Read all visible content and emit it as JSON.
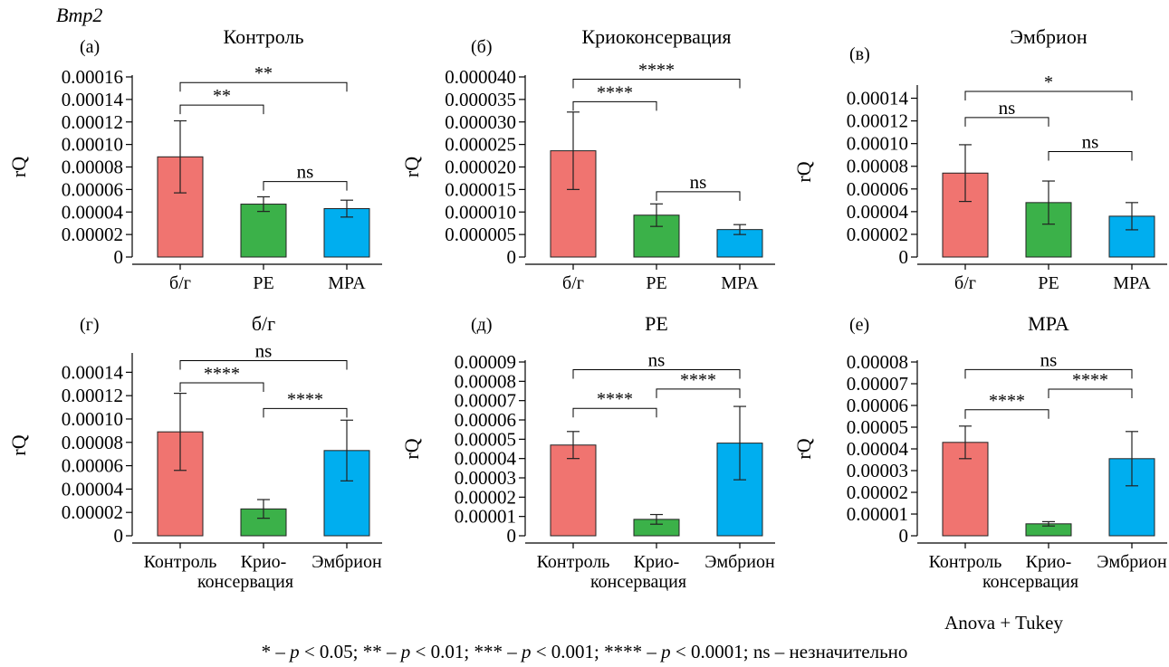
{
  "figure": {
    "gene_label": "Bmp2",
    "method_note": "Anova + Tukey",
    "legend": [
      {
        "sym": "*",
        "p": "0.05"
      },
      {
        "sym": "**",
        "p": "0.01"
      },
      {
        "sym": "***",
        "p": "0.001"
      },
      {
        "sym": "****",
        "p": "0.0001"
      }
    ],
    "legend_ns": "ns – незначительно"
  },
  "colors": {
    "red": "#f07470",
    "green": "#3bb149",
    "blue": "#00aeef"
  },
  "chart_data": [
    {
      "type": "bar",
      "letter": "(а)",
      "title": "Контроль",
      "ylabel": "rQ",
      "categories": [
        "б/г",
        "PE",
        "MPA"
      ],
      "values": [
        8.9e-05,
        4.7e-05,
        4.3e-05
      ],
      "errors": [
        3.2e-05,
        6.5e-06,
        7.5e-06
      ],
      "colors": [
        "red",
        "green",
        "blue"
      ],
      "ylim": [
        0,
        0.00016
      ],
      "yticks": [
        "0",
        "0.00002",
        "0.00004",
        "0.00006",
        "0.00008",
        "0.00010",
        "0.00012",
        "0.00014",
        "0.00016"
      ],
      "tick_step": 2e-05,
      "brackets": [
        {
          "from": 0,
          "to": 1,
          "at": 0.000135,
          "label": "**"
        },
        {
          "from": 0,
          "to": 2,
          "at": 0.000155,
          "label": "**"
        },
        {
          "from": 1,
          "to": 2,
          "at": 6.7e-05,
          "label": "ns"
        }
      ]
    },
    {
      "type": "bar",
      "letter": "(б)",
      "title": "Криоконсервация",
      "ylabel": "rQ",
      "categories": [
        "б/г",
        "PE",
        "MPA"
      ],
      "values": [
        2.36e-05,
        9.3e-06,
        6.1e-06
      ],
      "errors": [
        8.6e-06,
        2.5e-06,
        1.1e-06
      ],
      "colors": [
        "red",
        "green",
        "blue"
      ],
      "ylim": [
        0,
        4e-05
      ],
      "yticks": [
        "0",
        "0.000005",
        "0.000010",
        "0.000015",
        "0.000020",
        "0.000025",
        "0.000030",
        "0.000035",
        "0.000040"
      ],
      "tick_step": 5e-06,
      "brackets": [
        {
          "from": 0,
          "to": 1,
          "at": 3.45e-05,
          "label": "****"
        },
        {
          "from": 0,
          "to": 2,
          "at": 3.95e-05,
          "label": "****"
        },
        {
          "from": 1,
          "to": 2,
          "at": 1.45e-05,
          "label": "ns"
        }
      ]
    },
    {
      "type": "bar",
      "letter": "(в)",
      "title": "Эмбрион",
      "ylabel": "rQ",
      "categories": [
        "б/г",
        "PE",
        "MPA"
      ],
      "values": [
        7.4e-05,
        4.8e-05,
        3.6e-05
      ],
      "errors": [
        2.5e-05,
        1.9e-05,
        1.2e-05
      ],
      "colors": [
        "red",
        "green",
        "blue"
      ],
      "ylim": [
        0,
        0.00015
      ],
      "yticks": [
        "0",
        "0.00002",
        "0.00004",
        "0.00006",
        "0.00008",
        "0.00010",
        "0.00012",
        "0.00014"
      ],
      "tick_step": 2e-05,
      "brackets": [
        {
          "from": 0,
          "to": 1,
          "at": 0.000123,
          "label": "ns"
        },
        {
          "from": 0,
          "to": 2,
          "at": 0.000146,
          "label": "*"
        },
        {
          "from": 1,
          "to": 2,
          "at": 9.3e-05,
          "label": "ns"
        }
      ]
    },
    {
      "type": "bar",
      "letter": "(г)",
      "title": "б/г",
      "ylabel": "rQ",
      "categories": [
        "Контроль",
        "Крио-|консервация",
        "Эмбрион"
      ],
      "values": [
        8.9e-05,
        2.3e-05,
        7.3e-05
      ],
      "errors": [
        3.3e-05,
        8e-06,
        2.6e-05
      ],
      "colors": [
        "red",
        "green",
        "blue"
      ],
      "ylim": [
        0,
        0.000155
      ],
      "yticks": [
        "0",
        "0.00002",
        "0.00004",
        "0.00006",
        "0.00008",
        "0.00010",
        "0.00012",
        "0.00014"
      ],
      "tick_step": 2e-05,
      "brackets": [
        {
          "from": 0,
          "to": 1,
          "at": 0.000131,
          "label": "****"
        },
        {
          "from": 0,
          "to": 2,
          "at": 0.00015,
          "label": "ns"
        },
        {
          "from": 1,
          "to": 2,
          "at": 0.000109,
          "label": "****"
        }
      ]
    },
    {
      "type": "bar",
      "letter": "(д)",
      "title": "PE",
      "ylabel": "rQ",
      "categories": [
        "Контроль",
        "Крио-|консервация",
        "Эмбрион"
      ],
      "values": [
        4.7e-05,
        8.5e-06,
        4.8e-05
      ],
      "errors": [
        7e-06,
        2.5e-06,
        1.9e-05
      ],
      "colors": [
        "red",
        "green",
        "blue"
      ],
      "ylim": [
        0,
        9e-05
      ],
      "yticks": [
        "0",
        "0.00001",
        "0.00002",
        "0.00003",
        "0.00004",
        "0.00005",
        "0.00006",
        "0.00007",
        "0.00008",
        "0.00009"
      ],
      "tick_step": 1e-05,
      "brackets": [
        {
          "from": 0,
          "to": 1,
          "at": 6.6e-05,
          "label": "****"
        },
        {
          "from": 0,
          "to": 2,
          "at": 8.6e-05,
          "label": "ns"
        },
        {
          "from": 1,
          "to": 2,
          "at": 7.6e-05,
          "label": "****"
        }
      ]
    },
    {
      "type": "bar",
      "letter": "(е)",
      "title": "MPA",
      "ylabel": "rQ",
      "categories": [
        "Контроль",
        "Крио-|консервация",
        "Эмбрион"
      ],
      "values": [
        4.3e-05,
        5.5e-06,
        3.55e-05
      ],
      "errors": [
        7.5e-06,
        1e-06,
        1.25e-05
      ],
      "colors": [
        "red",
        "green",
        "blue"
      ],
      "ylim": [
        0,
        8e-05
      ],
      "yticks": [
        "0",
        "0.00001",
        "0.00002",
        "0.00003",
        "0.00004",
        "0.00005",
        "0.00006",
        "0.00007",
        "0.00008"
      ],
      "tick_step": 1e-05,
      "brackets": [
        {
          "from": 0,
          "to": 1,
          "at": 5.8e-05,
          "label": "****"
        },
        {
          "from": 0,
          "to": 2,
          "at": 7.65e-05,
          "label": "ns"
        },
        {
          "from": 1,
          "to": 2,
          "at": 6.75e-05,
          "label": "****"
        }
      ]
    }
  ]
}
